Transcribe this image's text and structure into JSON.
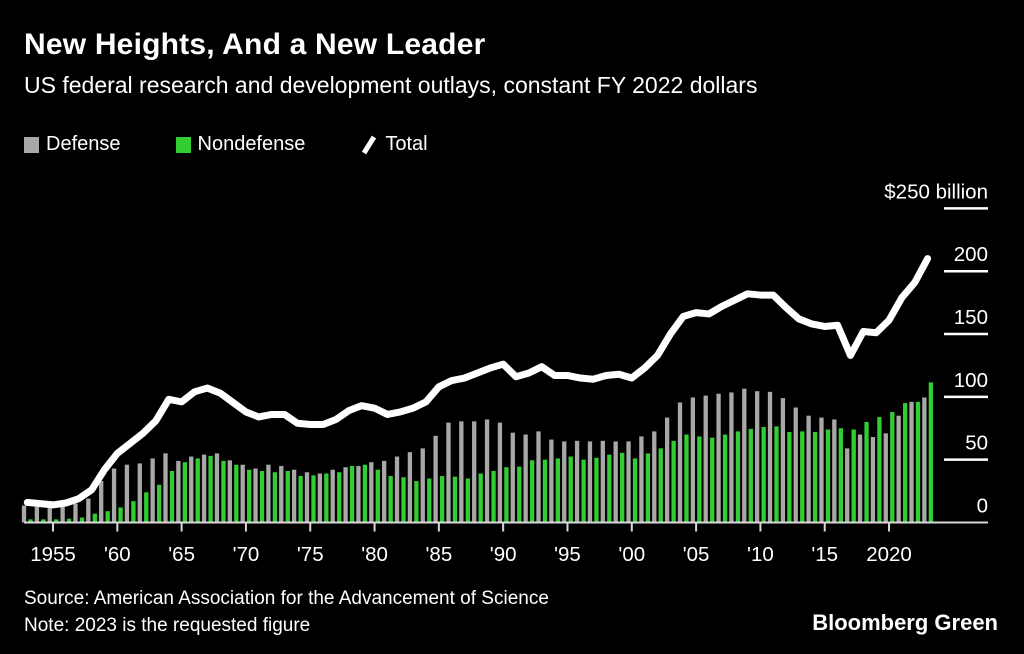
{
  "header": {
    "title": "New Heights, And a New Leader",
    "subtitle": "US federal research and development outlays, constant FY 2022 dollars"
  },
  "legend": [
    {
      "label": "Defense",
      "color": "#a8a8a8",
      "shape": "square"
    },
    {
      "label": "Nondefense",
      "color": "#32cd32",
      "shape": "square"
    },
    {
      "label": "Total",
      "color": "#ffffff",
      "shape": "slash"
    }
  ],
  "footer": {
    "source": "Source: American Association for the Advancement of Science",
    "note": "Note: 2023 is the requested figure",
    "brand": "Bloomberg Green"
  },
  "chart_data": {
    "type": "bar",
    "title": "New Heights, And a New Leader",
    "subtitle": "US federal research and development outlays, constant FY 2022 dollars",
    "unit": "billion USD, constant FY 2022 dollars",
    "x_start_year": 1953,
    "x_end_year": 2023,
    "years": [
      1953,
      1954,
      1955,
      1956,
      1957,
      1958,
      1959,
      1960,
      1961,
      1962,
      1963,
      1964,
      1965,
      1966,
      1967,
      1968,
      1969,
      1970,
      1971,
      1972,
      1973,
      1974,
      1975,
      1976,
      1977,
      1978,
      1979,
      1980,
      1981,
      1982,
      1983,
      1984,
      1985,
      1986,
      1987,
      1988,
      1989,
      1990,
      1991,
      1992,
      1993,
      1994,
      1995,
      1996,
      1997,
      1998,
      1999,
      2000,
      2001,
      2002,
      2003,
      2004,
      2005,
      2006,
      2007,
      2008,
      2009,
      2010,
      2011,
      2012,
      2013,
      2014,
      2015,
      2016,
      2017,
      2018,
      2019,
      2020,
      2021,
      2022,
      2023
    ],
    "series": [
      {
        "name": "Defense",
        "type": "bar",
        "color": "#a8a8a8",
        "values": [
          13.5,
          12.5,
          11.5,
          12.5,
          15,
          19,
          33,
          43,
          46,
          47,
          51,
          55,
          49,
          52.5,
          54,
          55,
          49.5,
          46,
          43,
          46,
          45,
          42,
          40,
          39,
          42,
          44,
          45,
          48,
          49,
          52.5,
          56,
          59,
          69,
          79.5,
          80.5,
          80.5,
          82,
          79.5,
          71.5,
          70,
          72.5,
          66,
          64.5,
          65,
          64.5,
          65,
          64.5,
          64.5,
          68.5,
          72.5,
          83.5,
          95.5,
          99.5,
          101,
          102.5,
          103.5,
          106.5,
          104.5,
          104,
          99,
          91.5,
          85,
          83.5,
          82,
          59,
          70,
          68,
          71,
          85,
          96,
          99.5
        ]
      },
      {
        "name": "Nondefense",
        "type": "bar",
        "color": "#32cd32",
        "values": [
          2.5,
          2.5,
          2.5,
          3,
          4,
          7,
          9,
          12,
          17,
          24,
          30,
          41,
          48,
          51,
          53,
          49,
          46,
          42,
          41,
          40,
          41,
          37,
          37.5,
          39,
          40,
          45,
          46,
          42,
          37,
          36,
          33,
          35,
          37,
          36.5,
          35,
          39,
          41,
          44,
          44.5,
          49.5,
          50,
          51,
          52.5,
          50,
          51.5,
          54,
          55.5,
          51,
          55,
          59,
          65,
          70,
          68.5,
          67.5,
          70,
          72.5,
          74.5,
          76,
          76.5,
          72,
          72.5,
          72,
          74,
          75,
          74,
          80,
          84,
          88,
          95,
          96,
          111.5
        ]
      },
      {
        "name": "Total",
        "type": "line",
        "color": "#ffffff",
        "values": [
          16,
          15,
          14,
          15.5,
          19,
          26,
          42,
          55,
          63,
          71,
          81,
          98,
          96,
          104,
          107,
          103,
          95.5,
          88,
          84,
          86,
          86,
          79,
          78,
          78,
          82,
          89,
          93,
          91,
          86,
          88,
          91,
          96,
          108,
          113,
          115,
          119,
          123,
          126,
          116,
          119,
          124,
          117,
          117,
          115,
          114,
          117,
          118,
          115,
          123,
          133,
          150,
          164,
          167,
          166,
          172,
          177,
          182,
          181,
          181,
          171,
          162,
          158,
          156,
          157,
          133,
          152,
          151,
          161,
          179,
          191,
          210
        ]
      }
    ],
    "x_axis": {
      "ticks": [
        {
          "year": 1955,
          "label": "1955"
        },
        {
          "year": 1960,
          "label": "'60"
        },
        {
          "year": 1965,
          "label": "'65"
        },
        {
          "year": 1970,
          "label": "'70"
        },
        {
          "year": 1975,
          "label": "'75"
        },
        {
          "year": 1980,
          "label": "'80"
        },
        {
          "year": 1985,
          "label": "'85"
        },
        {
          "year": 1990,
          "label": "'90"
        },
        {
          "year": 1995,
          "label": "'95"
        },
        {
          "year": 2000,
          "label": "'00"
        },
        {
          "year": 2005,
          "label": "'05"
        },
        {
          "year": 2010,
          "label": "'10"
        },
        {
          "year": 2015,
          "label": "'15"
        },
        {
          "year": 2020,
          "label": "2020"
        }
      ]
    },
    "y_axis": {
      "ylim": [
        0,
        250
      ],
      "ticks": [
        {
          "value": 250,
          "label": "$250 billion"
        },
        {
          "value": 200,
          "label": "200"
        },
        {
          "value": 150,
          "label": "150"
        },
        {
          "value": 100,
          "label": "100"
        },
        {
          "value": 50,
          "label": "50"
        },
        {
          "value": 0,
          "label": "0"
        }
      ]
    },
    "legend_position": "top-left",
    "grid": "right-side tick dashes only"
  }
}
